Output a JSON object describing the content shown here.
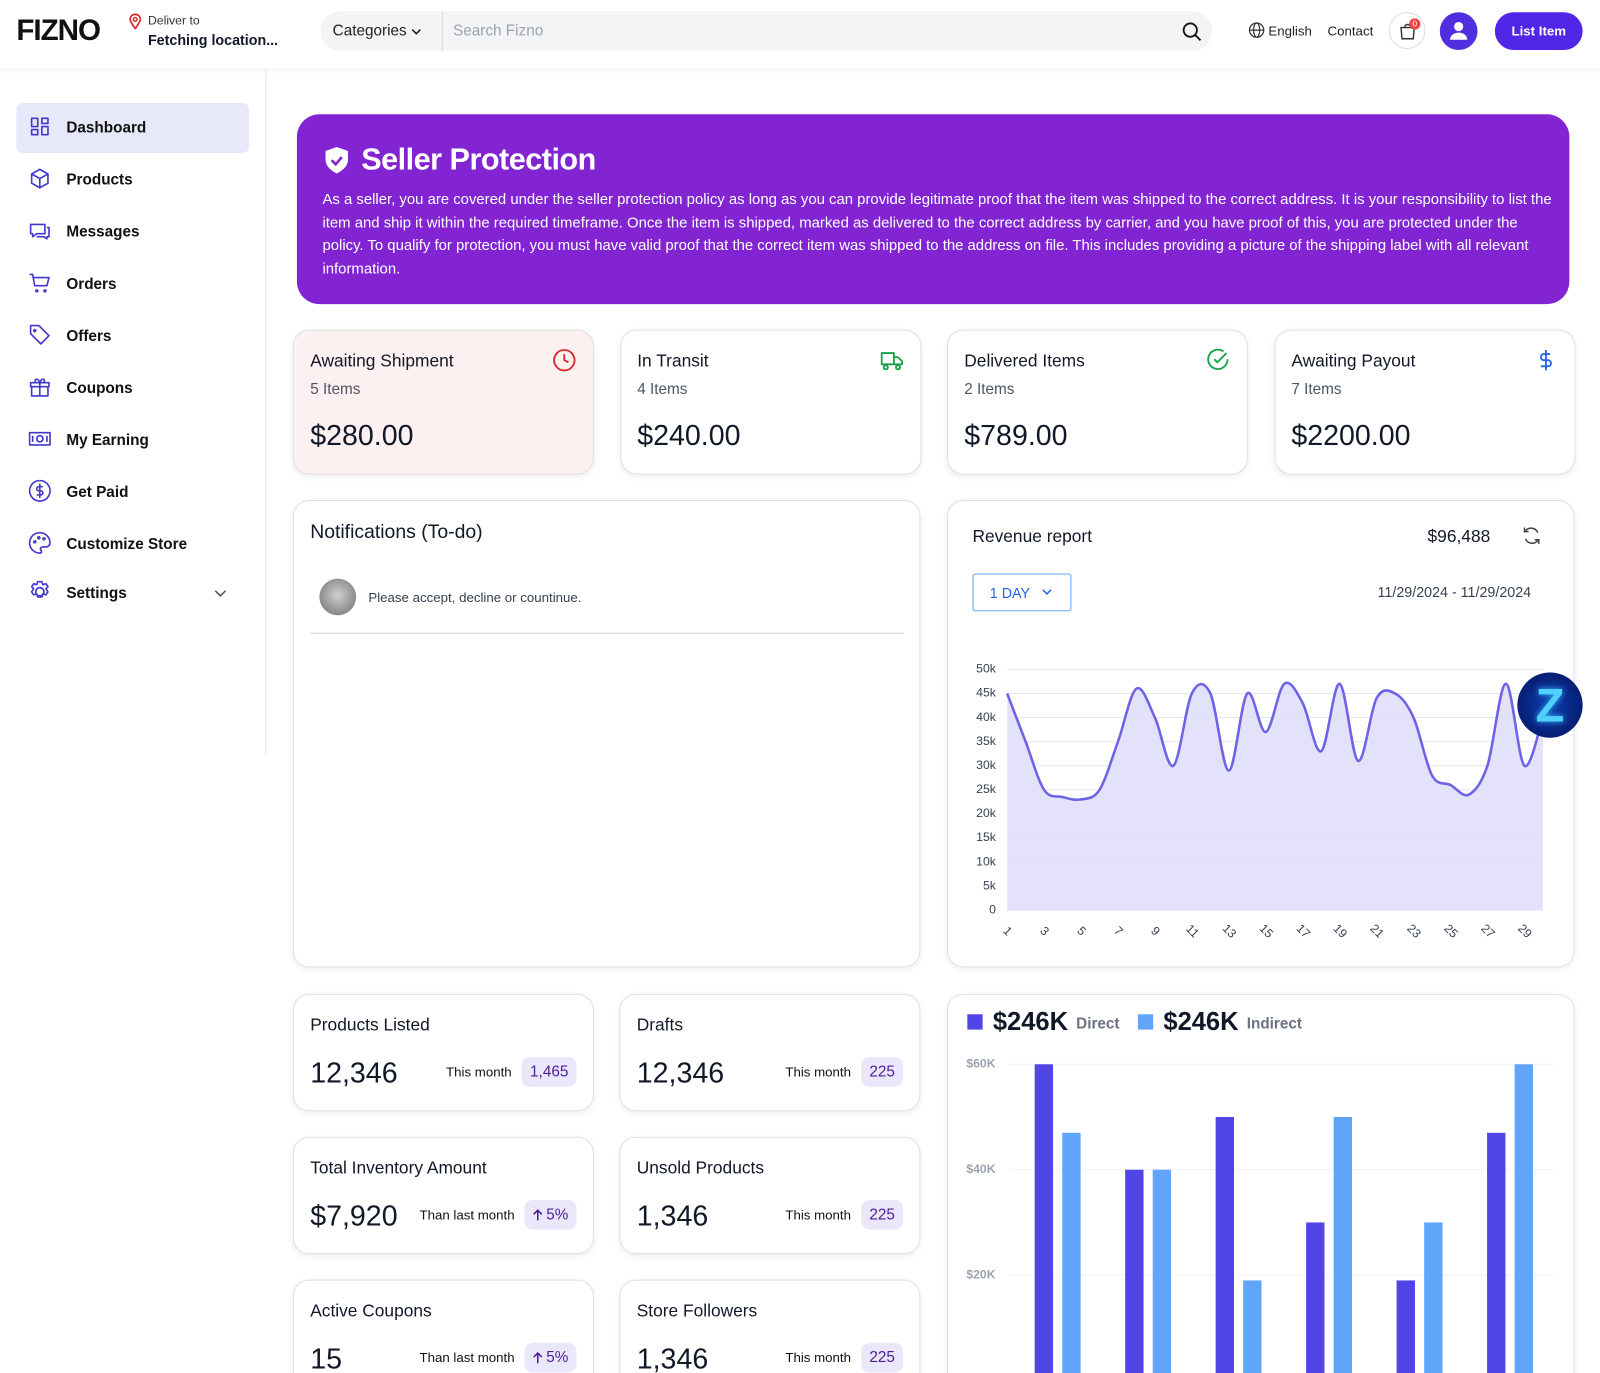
{
  "header": {
    "logo": "FIZNO",
    "deliver_label": "Deliver to",
    "location": "Fetching location...",
    "categories": "Categories",
    "search_placeholder": "Search Fizno",
    "language": "English",
    "contact": "Contact",
    "cart_badge": "0",
    "list_item": "List Item"
  },
  "sidebar": {
    "items": [
      "Dashboard",
      "Products",
      "Messages",
      "Orders",
      "Offers",
      "Coupons",
      "My Earning",
      "Get Paid",
      "Customize Store",
      "Settings"
    ],
    "active": "Dashboard"
  },
  "banner": {
    "title": "Seller Protection",
    "text": "As a seller, you are covered under the seller protection policy as long as you can provide legitimate proof that the item was shipped to the correct address. It is your responsibility to list the item and ship it within the required timeframe. Once the item is shipped, marked as delivered to the correct address by carrier, and you have proof of this, you are protected under the policy. To qualify for protection, you must have valid proof that the correct item was shipped to the address on file. This includes providing a picture of the shipping label with all relevant information."
  },
  "status_cards": [
    {
      "title": "Awaiting Shipment",
      "items": "5 Items",
      "amount": "$280.00"
    },
    {
      "title": "In Transit",
      "items": "4 Items",
      "amount": "$240.00"
    },
    {
      "title": "Delivered Items",
      "items": "2 Items",
      "amount": "$789.00"
    },
    {
      "title": "Awaiting Payout",
      "items": "7 Items",
      "amount": "$2200.00"
    }
  ],
  "notifications": {
    "title": "Notifications (To-do)",
    "items": [
      "Please accept, decline or countinue."
    ]
  },
  "revenue": {
    "title": "Revenue report",
    "total": "$96,488",
    "period": "1 DAY",
    "date_range": "11/29/2024 - 11/29/2024"
  },
  "stats": [
    {
      "title": "Products Listed",
      "value": "12,346",
      "note": "This month",
      "badge": "1,465"
    },
    {
      "title": "Drafts",
      "value": "12,346",
      "note": "This month",
      "badge": "225"
    },
    {
      "title": "Total Inventory Amount",
      "value": "$7,920",
      "note": "Than last month",
      "badge": "5%",
      "trend": "up"
    },
    {
      "title": "Unsold Products",
      "value": "1,346",
      "note": "This month",
      "badge": "225"
    },
    {
      "title": "Active Coupons",
      "value": "15",
      "note": "Than last month",
      "badge": "5%",
      "trend": "up"
    },
    {
      "title": "Store Followers",
      "value": "1,346",
      "note": "This month",
      "badge": "225"
    }
  ],
  "widget_label": "Z",
  "chart_data": [
    {
      "type": "line",
      "x": [
        1,
        2,
        3,
        4,
        5,
        6,
        7,
        8,
        9,
        10,
        11,
        12,
        13,
        14,
        15,
        16,
        17,
        18,
        19,
        20,
        21,
        22,
        23,
        24,
        25,
        26,
        27,
        28,
        29,
        30
      ],
      "values": [
        45000,
        35000,
        25000,
        23500,
        23000,
        25000,
        35000,
        46000,
        40000,
        30000,
        45000,
        45000,
        29000,
        45000,
        37000,
        47000,
        43000,
        33000,
        47000,
        31000,
        44000,
        45000,
        40000,
        28000,
        26000,
        24000,
        30000,
        47000,
        30000,
        40000
      ],
      "color": "#6c63e6",
      "xlim": [
        1,
        30
      ],
      "xticks": [
        1,
        3,
        5,
        7,
        9,
        11,
        13,
        15,
        17,
        19,
        21,
        23,
        25,
        27,
        29
      ],
      "ylim": [
        0,
        50000
      ],
      "yticks": [
        0,
        {
          "value": 5000,
          "label": "5k"
        },
        {
          "value": 10000,
          "label": "10k"
        },
        {
          "value": 15000,
          "label": "15k"
        },
        {
          "value": 20000,
          "label": "20k"
        },
        {
          "value": 25000,
          "label": "25k"
        },
        {
          "value": 30000,
          "label": "30k"
        },
        {
          "value": 35000,
          "label": "35k"
        },
        {
          "value": 40000,
          "label": "40k"
        },
        {
          "value": 45000,
          "label": "45k"
        },
        {
          "value": 50000,
          "label": "50k"
        }
      ],
      "grid": true
    },
    {
      "type": "bar",
      "categories": [
        null,
        null,
        null,
        null,
        null,
        null
      ],
      "series": [
        {
          "name": "Direct",
          "total": "$246K",
          "color": "#4f46e5",
          "values": [
            60000,
            40000,
            50000,
            30000,
            19000,
            47000
          ]
        },
        {
          "name": "Indirect",
          "total": "$246K",
          "color": "#60a5fa",
          "values": [
            47000,
            40000,
            19000,
            50000,
            30000,
            60000
          ]
        }
      ],
      "ylim": [
        0,
        60000
      ],
      "yticks": [
        {
          "value": 20000,
          "label": "$20K"
        },
        {
          "value": 40000,
          "label": "$40K"
        },
        {
          "value": 60000,
          "label": "$60K"
        }
      ],
      "grid": true
    }
  ]
}
